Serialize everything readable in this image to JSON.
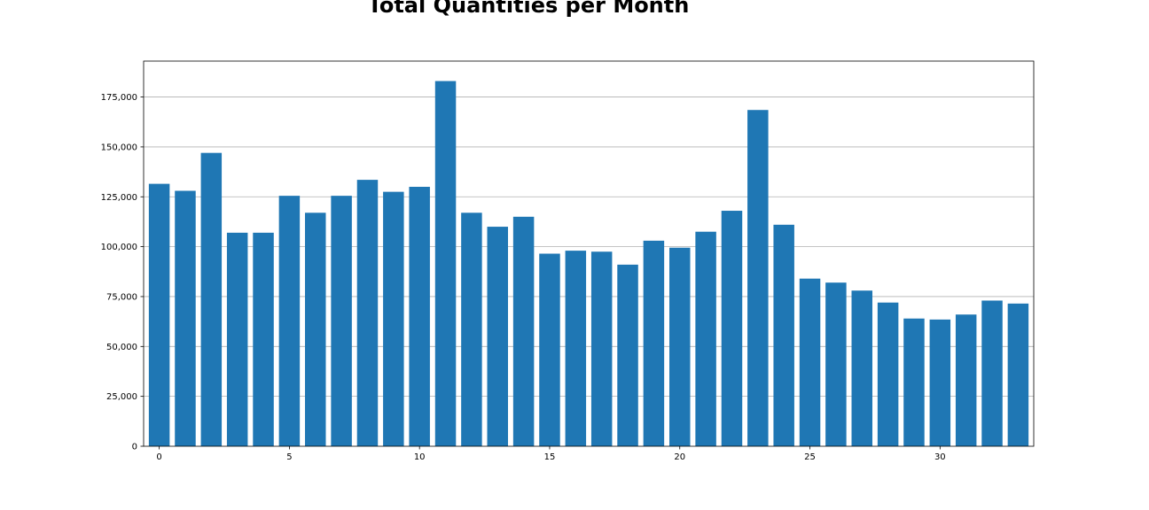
{
  "chart_data": {
    "type": "bar",
    "title": "Total Quantities per Month",
    "xlabel": "",
    "ylabel": "",
    "categories": [
      0,
      1,
      2,
      3,
      4,
      5,
      6,
      7,
      8,
      9,
      10,
      11,
      12,
      13,
      14,
      15,
      16,
      17,
      18,
      19,
      20,
      21,
      22,
      23,
      24,
      25,
      26,
      27,
      28,
      29,
      30,
      31,
      32,
      33
    ],
    "values": [
      131500,
      128000,
      147000,
      107000,
      107000,
      125500,
      117000,
      125500,
      133500,
      127500,
      130000,
      183000,
      117000,
      110000,
      115000,
      96500,
      98000,
      97500,
      91000,
      103000,
      99500,
      107500,
      118000,
      168500,
      111000,
      84000,
      82000,
      78000,
      72000,
      64000,
      63500,
      66000,
      73000,
      71500
    ],
    "xlim": [
      -0.6,
      33.6
    ],
    "ylim": [
      0,
      193000
    ],
    "xticks": [
      0,
      5,
      10,
      15,
      20,
      25,
      30
    ],
    "yticks": [
      0,
      25000,
      50000,
      75000,
      100000,
      125000,
      150000,
      175000
    ],
    "ytick_labels": [
      "0",
      "25,000",
      "50,000",
      "75,000",
      "100,000",
      "125,000",
      "150,000",
      "175,000"
    ],
    "grid": "horizontal",
    "bar_color": "#1f77b4",
    "grid_color": "#b0b0b0"
  }
}
